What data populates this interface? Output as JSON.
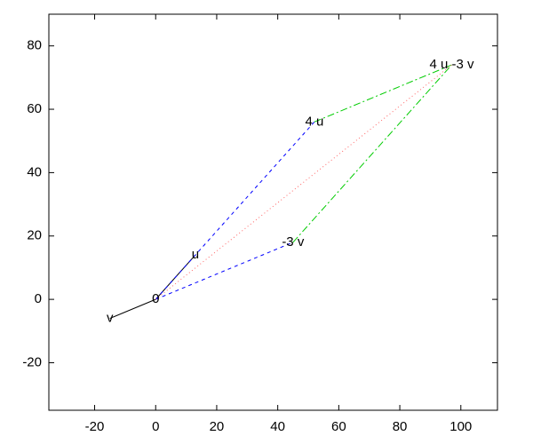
{
  "chart_data": {
    "type": "vector",
    "xlim": [
      -35,
      112
    ],
    "ylim": [
      -35,
      90
    ],
    "xticks": [
      -20,
      0,
      20,
      40,
      60,
      80,
      100
    ],
    "yticks": [
      -20,
      0,
      20,
      40,
      60,
      80
    ],
    "segments": [
      {
        "x": [
          0,
          13
        ],
        "y": [
          0,
          14
        ],
        "color": "#000000",
        "dash": "none"
      },
      {
        "x": [
          0,
          -15
        ],
        "y": [
          0,
          -6
        ],
        "color": "#000000",
        "dash": "none"
      },
      {
        "x": [
          0,
          52
        ],
        "y": [
          0,
          56
        ],
        "color": "#0000ff",
        "dash": "4 4"
      },
      {
        "x": [
          0,
          45
        ],
        "y": [
          0,
          18
        ],
        "color": "#0000ff",
        "dash": "4 4"
      },
      {
        "x": [
          52,
          97
        ],
        "y": [
          56,
          74
        ],
        "color": "#00cc00",
        "dash": "8 3 2 3"
      },
      {
        "x": [
          45,
          97
        ],
        "y": [
          18,
          74
        ],
        "color": "#00cc00",
        "dash": "8 3 2 3"
      },
      {
        "x": [
          0,
          97
        ],
        "y": [
          0,
          74
        ],
        "color": "#ff6666",
        "dash": "1 3"
      }
    ],
    "labels": [
      {
        "text": "0",
        "x": 0,
        "y": 0
      },
      {
        "text": "u",
        "x": 13,
        "y": 14
      },
      {
        "text": "v",
        "x": -15,
        "y": -6
      },
      {
        "text": "4 u",
        "x": 52,
        "y": 56
      },
      {
        "text": "-3 v",
        "x": 45,
        "y": 18
      },
      {
        "text": "4 u -3 v",
        "x": 97,
        "y": 74
      }
    ]
  }
}
